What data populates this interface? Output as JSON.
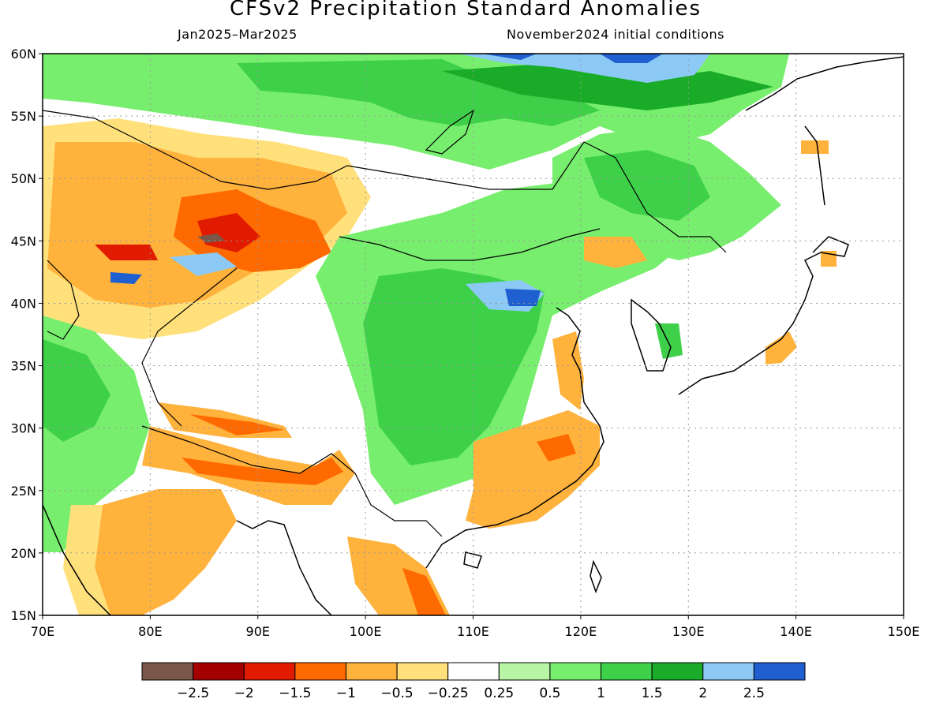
{
  "title": "CFSv2 Precipitation Standard Anomalies",
  "period": "Jan2025–Mar2025",
  "init": "November2024 initial conditions",
  "axes": {
    "lon_ticks": [
      "70E",
      "80E",
      "90E",
      "100E",
      "110E",
      "120E",
      "130E",
      "140E",
      "150E"
    ],
    "lat_ticks": [
      "60N",
      "55N",
      "50N",
      "45N",
      "40N",
      "35N",
      "30N",
      "25N",
      "20N",
      "15N"
    ],
    "lon_range": [
      70,
      150
    ],
    "lat_range": [
      15,
      60
    ],
    "grid": true
  },
  "colorbar": {
    "colors": [
      "#7a5748",
      "#a50000",
      "#e01b00",
      "#ff6a00",
      "#ffb23c",
      "#ffe07a",
      "#ffffff",
      "#b8f5a6",
      "#78ee6e",
      "#3fd04a",
      "#1aab28",
      "#8ccaf5",
      "#1f5fd0"
    ],
    "labels": [
      "−2.5",
      "−2",
      "−1.5",
      "−1",
      "−0.5",
      "−0.25",
      "0.25",
      "0.5",
      "1",
      "1.5",
      "2",
      "2.5"
    ]
  }
}
